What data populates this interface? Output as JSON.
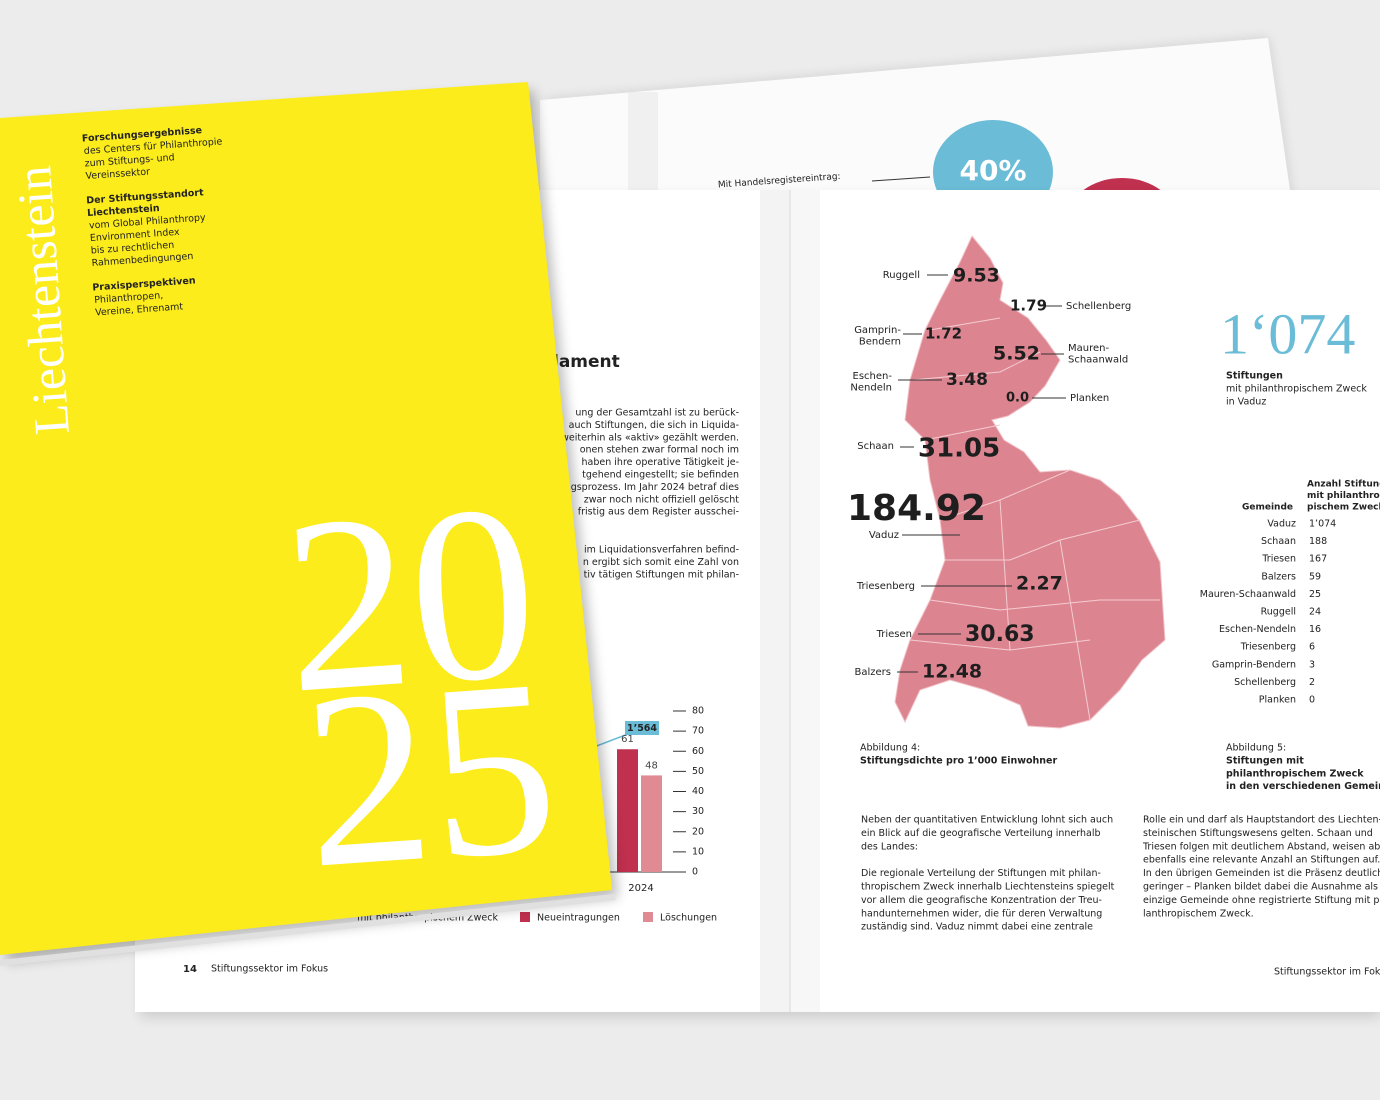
{
  "cover": {
    "title": "Liechtenstein",
    "year_top": "20",
    "year_bottom": "25",
    "blocks": [
      {
        "heading": [
          "Forschungsergebnisse"
        ],
        "lines": [
          "des Centers für Philanthropie",
          "zum Stiftungs- und",
          "Vereinssektor"
        ]
      },
      {
        "heading": [
          "Der Stiftungsstandort",
          "Liechtenstein"
        ],
        "lines": [
          "vom Global Philanthropy",
          "Environment Index",
          "bis zu rechtlichen",
          "Rahmenbedingungen"
        ]
      },
      {
        "heading": [
          "Praxisperspektiven"
        ],
        "lines": [
          "Philanthropen,",
          "Vereine, Ehrenamt"
        ]
      }
    ]
  },
  "back_page": {
    "label": "Mit Handelsregistereintrag:",
    "bubble": "40%"
  },
  "left_page": {
    "heading": "lament",
    "paragraph_1": [
      "ung der Gesamtzahl ist zu berück-",
      "auch Stiftungen, die sich in Liquida-",
      "weiterhin als «aktiv» gezählt werden.",
      "onen stehen zwar formal noch im",
      "haben ihre operative Tätigkeit je-",
      "tgehend eingestellt; sie befinden",
      "gsprozess. Im Jahr 2024 betraf dies",
      "zwar noch nicht offiziell gelöscht",
      "fristig aus dem Register ausschei-"
    ],
    "paragraph_2": [
      "im Liquidationsverfahren befind-",
      "n ergibt sich somit eine Zahl von",
      "tiv tätigen Stiftungen mit philan-"
    ],
    "chart": {
      "categories": [
        "2024"
      ],
      "ylim": [
        0,
        80
      ],
      "yticks": [
        0,
        10,
        20,
        30,
        40,
        50,
        60,
        70,
        80
      ],
      "annotation": "1’564",
      "legend_partial": "mit philanthropischem Zweck",
      "series": [
        {
          "name": "Neueintragungen",
          "color": "#c0304f",
          "values": [
            61
          ]
        },
        {
          "name": "Löschungen",
          "color": "#e08a93",
          "values": [
            48
          ]
        }
      ]
    },
    "page_number": "14",
    "footer": "Stiftungssektor im Fokus"
  },
  "right_page": {
    "map": {
      "municipalities": [
        {
          "name": [
            "Ruggell"
          ],
          "value": "9.53"
        },
        {
          "name": [
            "Schellenberg"
          ],
          "value": "1.79"
        },
        {
          "name": [
            "Gamprin-",
            "Bendern"
          ],
          "value": "1.72"
        },
        {
          "name": [
            "Mauren-",
            "Schaanwald"
          ],
          "value": "5.52"
        },
        {
          "name": [
            "Eschen-",
            "Nendeln"
          ],
          "value": "3.48"
        },
        {
          "name": [
            "Planken"
          ],
          "value": "0.0"
        },
        {
          "name": [
            "Schaan"
          ],
          "value": "31.05"
        },
        {
          "name": [
            "Vaduz"
          ],
          "value": "184.92"
        },
        {
          "name": [
            "Triesenberg"
          ],
          "value": "2.27"
        },
        {
          "name": [
            "Triesen"
          ],
          "value": "30.63"
        },
        {
          "name": [
            "Balzers"
          ],
          "value": "12.48"
        }
      ]
    },
    "highlight": {
      "value": "1‘074",
      "label": "Stiftungen",
      "lines": [
        "mit philanthropischem Zweck",
        "in Vaduz"
      ]
    },
    "table": {
      "header_name": "Gemeinde",
      "header_count": [
        "Anzahl Stiftungen",
        "mit philanthro-",
        "pischem Zweck"
      ],
      "rows": [
        [
          "Vaduz",
          "1’074"
        ],
        [
          "Schaan",
          "188"
        ],
        [
          "Triesen",
          "167"
        ],
        [
          "Balzers",
          "59"
        ],
        [
          "Mauren-Schaanwald",
          "25"
        ],
        [
          "Ruggell",
          "24"
        ],
        [
          "Eschen-Nendeln",
          "16"
        ],
        [
          "Triesenberg",
          "6"
        ],
        [
          "Gamprin-Bendern",
          "3"
        ],
        [
          "Schellenberg",
          "2"
        ],
        [
          "Planken",
          "0"
        ]
      ]
    },
    "caption_4": {
      "label": "Abbildung 4:",
      "title": [
        "Stiftungsdichte pro 1’000 Einwohner"
      ]
    },
    "caption_5": {
      "label": "Abbildung 5:",
      "title": [
        "Stiftungen mit",
        "philanthropischem Zweck",
        "in den verschiedenen Gemeinden"
      ]
    },
    "text_col_1": [
      "Neben der quantitativen Entwicklung lohnt sich auch",
      "ein Blick auf die geografische Verteilung innerhalb",
      "des Landes:",
      "Die regionale Verteilung der Stiftungen mit philan-",
      "thropischem Zweck innerhalb Liechtensteins spiegelt",
      "vor allem die geografische Konzentration der Treu-",
      "handunternehmen wider, die für deren Verwaltung",
      "zuständig sind. Vaduz nimmt dabei eine zentrale"
    ],
    "text_col_2": [
      "Rolle ein und darf als Hauptstandort des Liechten-",
      "steinischen Stiftungswesens gelten. Schaan und",
      "Triesen folgen mit deutlichem Abstand, weisen aber",
      "ebenfalls eine relevante Anzahl an Stiftungen auf.",
      "In den übrigen Gemeinden ist die Präsenz deutlich",
      "geringer – Planken bildet dabei die Ausnahme als",
      "einzige Gemeinde ohne registrierte Stiftung mit phi-",
      "lanthropischem Zweck."
    ],
    "footer": "Stiftungssektor im Fokus"
  }
}
